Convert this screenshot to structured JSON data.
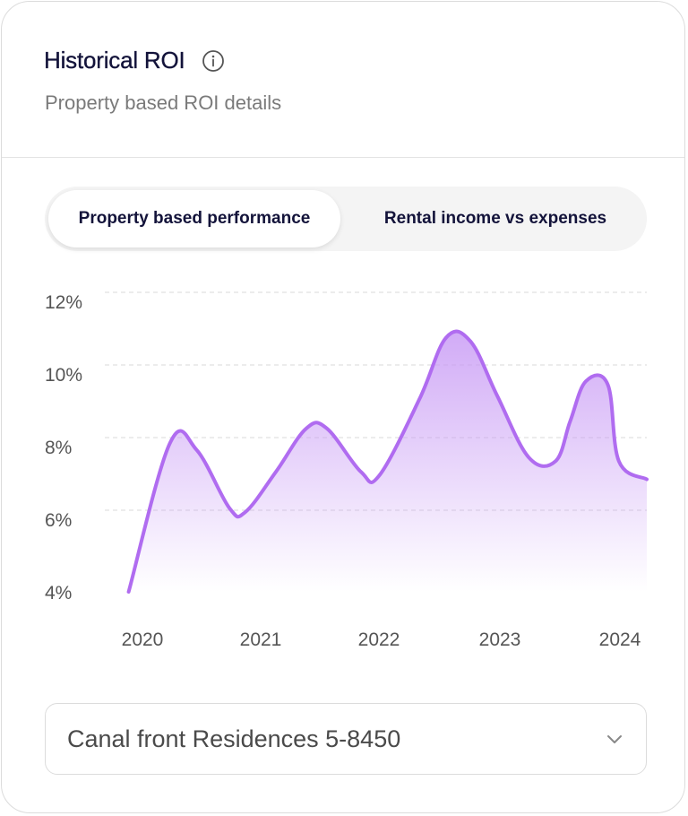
{
  "card": {
    "title": "Historical ROI",
    "subtitle": "Property based ROI details",
    "info_icon": "info-icon"
  },
  "tabs": [
    {
      "label": "Property based performance",
      "active": true
    },
    {
      "label": "Rental income vs expenses",
      "active": false
    }
  ],
  "chart_data": {
    "type": "area",
    "y_ticks": [
      "12%",
      "10%",
      "8%",
      "6%",
      "4%"
    ],
    "x_ticks": [
      "2020",
      "2021",
      "2022",
      "2023",
      "2024"
    ],
    "ylim": [
      4,
      12
    ],
    "xlim": [
      2020,
      2024.25
    ],
    "grid": true,
    "line_color": "#b06cf0",
    "fill_color": "#c99cf5",
    "series": [
      {
        "points": [
          [
            2019.99,
            4.0
          ],
          [
            2020.33,
            8.1
          ],
          [
            2020.55,
            7.9
          ],
          [
            2020.82,
            6.3
          ],
          [
            2020.95,
            6.2
          ],
          [
            2021.2,
            7.3
          ],
          [
            2021.45,
            8.5
          ],
          [
            2021.62,
            8.5
          ],
          [
            2021.9,
            7.3
          ],
          [
            2022.05,
            7.2
          ],
          [
            2022.38,
            9.3
          ],
          [
            2022.6,
            11.0
          ],
          [
            2022.8,
            10.9
          ],
          [
            2023.02,
            9.4
          ],
          [
            2023.28,
            7.7
          ],
          [
            2023.5,
            7.6
          ],
          [
            2023.62,
            8.7
          ],
          [
            2023.75,
            9.8
          ],
          [
            2023.93,
            9.7
          ],
          [
            2024.02,
            7.6
          ],
          [
            2024.25,
            7.1
          ]
        ]
      }
    ]
  },
  "dropdown": {
    "value": "Canal front Residences 5-8450",
    "icon": "chevron-down-icon"
  }
}
